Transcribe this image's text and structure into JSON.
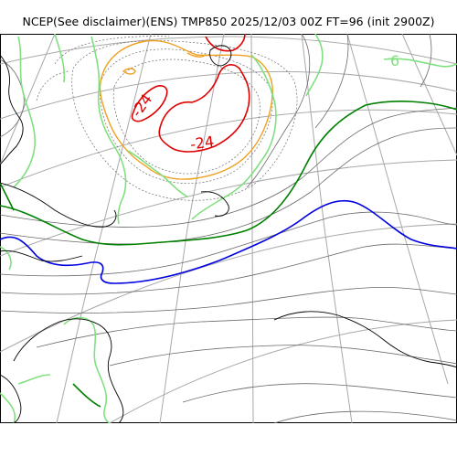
{
  "title": "NCEP(See disclaimer)(ENS) TMP850 2025/12/03 00Z FT=96 (init 2900Z)",
  "labels": {
    "contour_m24_a": "-24",
    "contour_m24_b": "-24",
    "contour_6": "6"
  },
  "colors": {
    "coast": "#000000",
    "grid": "#a0a0a0",
    "contour_thin": "#6a6a6a",
    "contour_m24": "#e00000",
    "contour_m18": "#f0a020",
    "contour_m6": "#80e080",
    "contour_0": "#008000",
    "contour_6": "#0000e0"
  }
}
